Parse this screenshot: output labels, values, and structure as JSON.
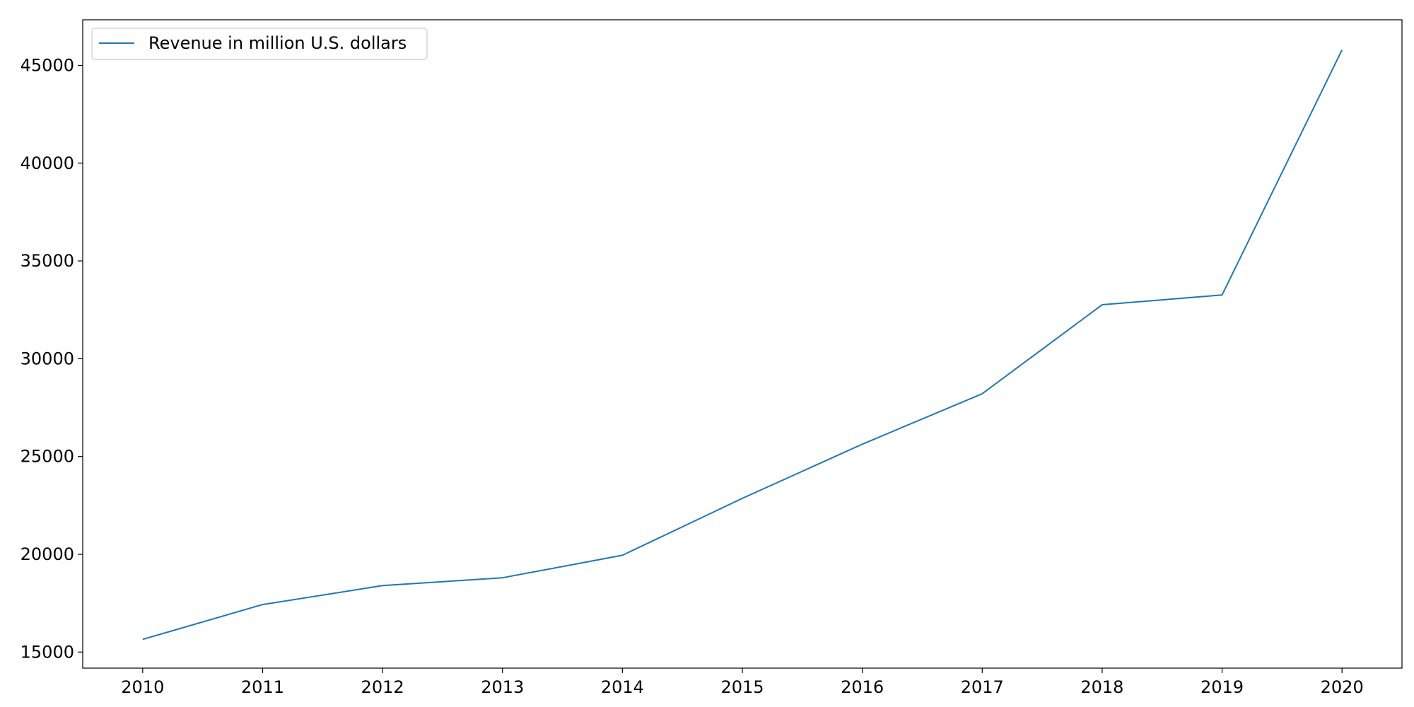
{
  "chart_data": {
    "type": "line",
    "title": "",
    "xlabel": "",
    "ylabel": "",
    "x": [
      "2010",
      "2011",
      "2012",
      "2013",
      "2014",
      "2015",
      "2016",
      "2017",
      "2018",
      "2019",
      "2020"
    ],
    "series": [
      {
        "name": "Revenue in million U.S. dollars",
        "values": [
          15650,
          17430,
          18400,
          18800,
          19950,
          22860,
          25630,
          28210,
          32760,
          33260,
          45790
        ],
        "color": "#1f77b4"
      }
    ],
    "x_ticks": [
      "2010",
      "2011",
      "2012",
      "2013",
      "2014",
      "2015",
      "2016",
      "2017",
      "2018",
      "2019",
      "2020"
    ],
    "y_ticks": [
      15000,
      20000,
      25000,
      30000,
      35000,
      40000,
      45000
    ],
    "xlim": [
      2009.5,
      2020.5
    ],
    "ylim": [
      14180,
      47330
    ],
    "grid": false,
    "legend_position": "top-left"
  }
}
